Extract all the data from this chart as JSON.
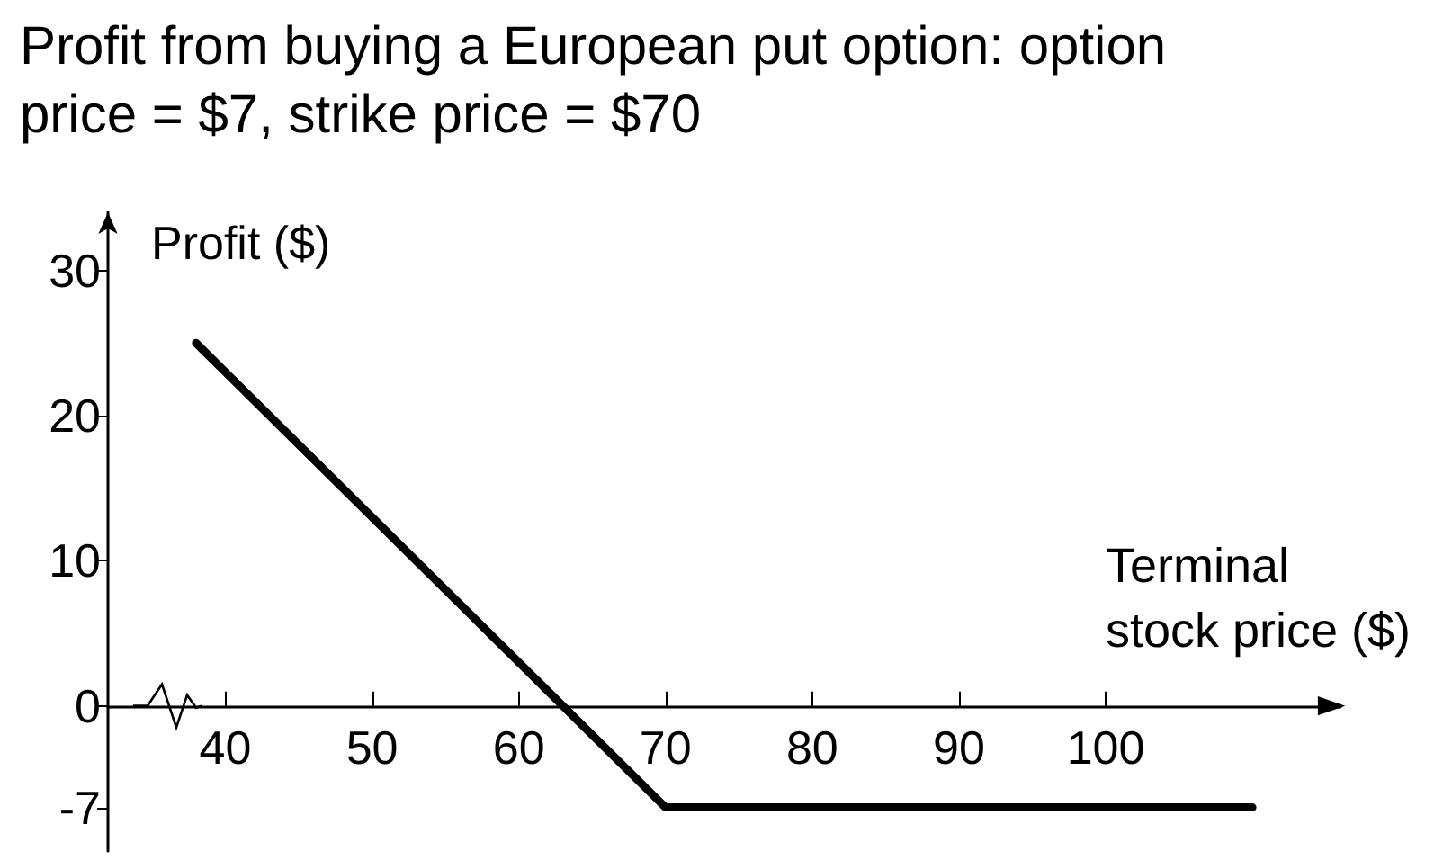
{
  "chart_data": {
    "type": "line",
    "title": "Profit from buying a European put option: option price = $7, strike price = $70",
    "xlabel": "Terminal\nstock price ($)",
    "ylabel": "Profit ($)",
    "x": [
      38,
      70,
      110
    ],
    "series": [
      {
        "color": "#000000",
        "values": [
          25,
          -7,
          -7
        ]
      }
    ],
    "xlim": [
      32,
      116
    ],
    "xticks": [
      40,
      50,
      60,
      70,
      80,
      90,
      100
    ],
    "ylim": [
      -10,
      34
    ],
    "yticks": [
      -7,
      0,
      10,
      20,
      30
    ],
    "grid": false,
    "marker": "none",
    "line_style": "solid"
  }
}
